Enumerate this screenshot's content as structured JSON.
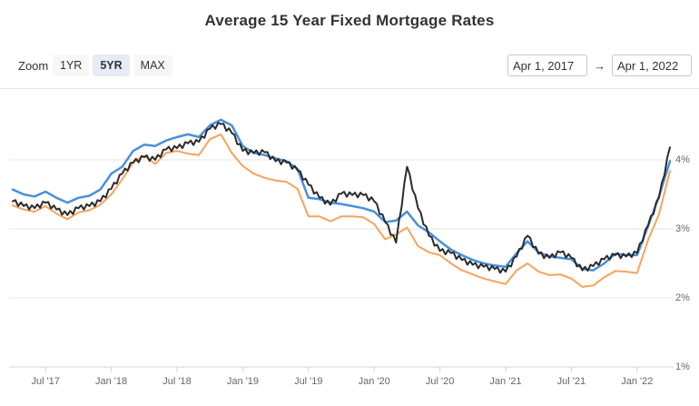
{
  "title": "Average 15 Year Fixed Mortgage Rates",
  "toolbar": {
    "zoom_label": "Zoom",
    "buttons": [
      {
        "label": "1YR",
        "selected": false
      },
      {
        "label": "5YR",
        "selected": true
      },
      {
        "label": "MAX",
        "selected": false
      }
    ],
    "date_from": "Apr 1, 2017",
    "arrow": "→",
    "date_to": "Apr 1, 2022"
  },
  "colors": {
    "title_text": "#333333",
    "axis_label_text": "#666666",
    "gridline": "#e6e6e6",
    "axis_line": "#ccd6eb",
    "button_bg": "#f7f7f7",
    "button_selected_bg": "#e6ebf5",
    "series_black": "#2b2b2b",
    "series_blue": "#4a90d9",
    "series_orange": "#f7a35c"
  },
  "chart_data": {
    "type": "line",
    "title": "Average 15 Year Fixed Mortgage Rates",
    "xlabel": "",
    "ylabel": "",
    "x_unit": "month",
    "x_start": "Apr 2017",
    "x_end": "Apr 2022",
    "x_tick_labels": [
      "Jul '17",
      "Jan '18",
      "Jul '18",
      "Jan '19",
      "Jul '19",
      "Jan '20",
      "Jul '20",
      "Jan '21",
      "Jul '21",
      "Jan '22"
    ],
    "x_tick_month_indices": [
      3,
      9,
      15,
      21,
      27,
      33,
      39,
      45,
      51,
      57
    ],
    "y_tick_labels": [
      "1%",
      "2%",
      "3%",
      "4%"
    ],
    "y_tick_values": [
      1,
      2,
      3,
      4
    ],
    "ylim": [
      1,
      4.9
    ],
    "grid": true,
    "legend": "none",
    "y_axis_side": "right",
    "series": [
      {
        "name": "blue-line",
        "color": "#4a90d9",
        "style": "smooth",
        "values": [
          3.57,
          3.5,
          3.47,
          3.54,
          3.45,
          3.38,
          3.45,
          3.48,
          3.57,
          3.8,
          3.9,
          4.13,
          4.22,
          4.2,
          4.28,
          4.33,
          4.37,
          4.33,
          4.5,
          4.58,
          4.5,
          4.2,
          4.1,
          4.07,
          4.02,
          3.98,
          3.87,
          3.45,
          3.43,
          3.38,
          3.36,
          3.33,
          3.3,
          3.25,
          3.1,
          3.12,
          3.25,
          3.05,
          2.95,
          2.82,
          2.7,
          2.62,
          2.55,
          2.5,
          2.47,
          2.45,
          2.65,
          2.82,
          2.66,
          2.6,
          2.58,
          2.56,
          2.42,
          2.4,
          2.5,
          2.64,
          2.62,
          2.62,
          3.04,
          3.47,
          3.98
        ]
      },
      {
        "name": "orange-line",
        "color": "#f7a35c",
        "style": "smooth",
        "values": [
          3.34,
          3.28,
          3.25,
          3.33,
          3.22,
          3.14,
          3.24,
          3.27,
          3.35,
          3.5,
          3.72,
          3.96,
          4.06,
          3.94,
          4.1,
          4.13,
          4.09,
          4.07,
          4.3,
          4.37,
          4.1,
          3.91,
          3.8,
          3.74,
          3.7,
          3.68,
          3.58,
          3.18,
          3.18,
          3.11,
          3.18,
          3.18,
          3.17,
          3.07,
          2.85,
          2.92,
          3.02,
          2.75,
          2.66,
          2.62,
          2.5,
          2.4,
          2.34,
          2.28,
          2.24,
          2.2,
          2.4,
          2.5,
          2.38,
          2.33,
          2.34,
          2.28,
          2.16,
          2.18,
          2.3,
          2.39,
          2.38,
          2.36,
          2.84,
          3.21,
          3.84
        ]
      },
      {
        "name": "black-line",
        "color": "#2b2b2b",
        "style": "jagged",
        "values": [
          3.4,
          3.33,
          3.3,
          3.38,
          3.28,
          3.2,
          3.3,
          3.33,
          3.4,
          3.58,
          3.8,
          3.96,
          4.04,
          4.0,
          4.15,
          4.17,
          4.24,
          4.26,
          4.45,
          4.52,
          4.39,
          4.13,
          4.1,
          4.11,
          3.98,
          3.96,
          3.85,
          3.64,
          3.45,
          3.35,
          3.51,
          3.49,
          3.49,
          3.4,
          3.1,
          2.8,
          3.9,
          3.3,
          2.9,
          2.68,
          2.65,
          2.55,
          2.48,
          2.45,
          2.42,
          2.38,
          2.6,
          2.9,
          2.64,
          2.58,
          2.66,
          2.58,
          2.4,
          2.46,
          2.56,
          2.62,
          2.6,
          2.65,
          3.05,
          3.45,
          4.18
        ]
      }
    ]
  }
}
